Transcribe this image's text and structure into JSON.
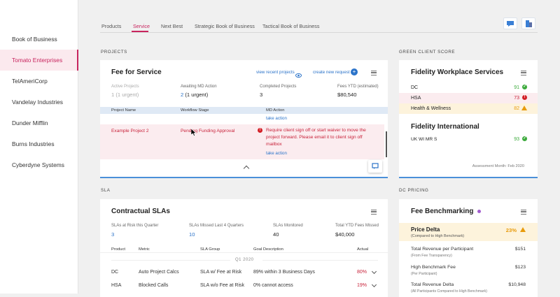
{
  "sidebar": {
    "items": [
      {
        "label": "Book of Business"
      },
      {
        "label": "Tomato Enterprises"
      },
      {
        "label": "TelAmeriCorp"
      },
      {
        "label": "Vandelay Industries"
      },
      {
        "label": "Dunder Mifflin"
      },
      {
        "label": "Burns Industries"
      },
      {
        "label": "Cyberdyne Systems"
      }
    ],
    "active_index": 1
  },
  "tabs": [
    {
      "label": "Products"
    },
    {
      "label": "Service"
    },
    {
      "label": "Next Best"
    },
    {
      "label": "Strategic Book of Business"
    },
    {
      "label": "Tactical Book of Business"
    }
  ],
  "sections": {
    "projects": "PROJECTS",
    "green": "GREEN CLIENT SCORE",
    "sla": "SLA",
    "dc_pricing": "DC PRICING"
  },
  "fee_card": {
    "title": "Fee for Service",
    "view_recent": "view recent projects",
    "create_new": "create new request",
    "stats": [
      {
        "label": "Active Projects",
        "value": "1 (1 urgent)"
      },
      {
        "label": "Awaiting MD Action",
        "count": "2",
        "extra": "(1 urgent)"
      },
      {
        "label": "Completed Projects",
        "value": "3"
      },
      {
        "label": "Fees YTD (estimated)",
        "value": "$80,540"
      }
    ],
    "columns": [
      "Project Name",
      "Workflow Stage",
      "MD Action"
    ],
    "row1_action": "take action",
    "row2": {
      "name": "Example Project 2",
      "stage": "Pending Funding Approval",
      "msg1": "Require client sign off or start waiver to move the",
      "msg2": "project forward. Please email it to client sign off",
      "msg3": "mailbox",
      "action": "take action"
    }
  },
  "green_card": {
    "title": "Fidelity Workplace Services",
    "rows": [
      {
        "label": "DC",
        "score": "91",
        "status": "green"
      },
      {
        "label": "HSA",
        "score": "73",
        "status": "red"
      },
      {
        "label": "Health & Wellness",
        "score": "82",
        "status": "warn"
      }
    ],
    "title2": "Fidelity International",
    "rows2": [
      {
        "label": "UK WI MR S",
        "score": "93",
        "status": "green"
      }
    ],
    "footer": "Assessment Month: Feb 2020"
  },
  "sla_card": {
    "title": "Contractual SLAs",
    "stats": [
      {
        "label": "SLAs at Risk this Quarter",
        "value": "3"
      },
      {
        "label": "SLAs Missed Last 4 Quarters",
        "value": "10"
      },
      {
        "label": "SLAs Monitored",
        "value": "40"
      },
      {
        "label": "Total YTD Fees Missed",
        "value": "$40,000"
      }
    ],
    "columns": [
      "Product",
      "Metric",
      "SLA Group",
      "Goal Description",
      "Actual"
    ],
    "quarter": "Q1 2020",
    "rows": [
      {
        "product": "DC",
        "metric": "Auto Project Calcs",
        "group": "SLA w/ Fee at Risk",
        "goal": "89% within 3 Business Days",
        "actual": "80%"
      },
      {
        "product": "HSA",
        "metric": "Blocked Calls",
        "group": "SLA w/o Fee at Risk",
        "goal": "0% cannot access",
        "actual": "19%"
      }
    ]
  },
  "fee_bench": {
    "title": "Fee Benchmarking",
    "price_delta": "Price Delta",
    "price_delta_sub": "(Compared to High Benchmark)",
    "price_delta_val": "23%",
    "rows": [
      {
        "label": "Total Revenue per Participant",
        "sub": "(From Fee Transparency)",
        "value": "$151"
      },
      {
        "label": "High Benchmark Fee",
        "sub": "(Per Participant)",
        "value": "$123"
      },
      {
        "label": "Total Revenue Delta",
        "sub": "(All Participants Compared to High Benchmark)",
        "value": "$10,948"
      }
    ]
  },
  "colors": {
    "accent": "#c8245e",
    "link": "#2b73c9",
    "alert_red": "#c8223a",
    "ok_green": "#3caa3c",
    "warn": "#e89b0c"
  }
}
